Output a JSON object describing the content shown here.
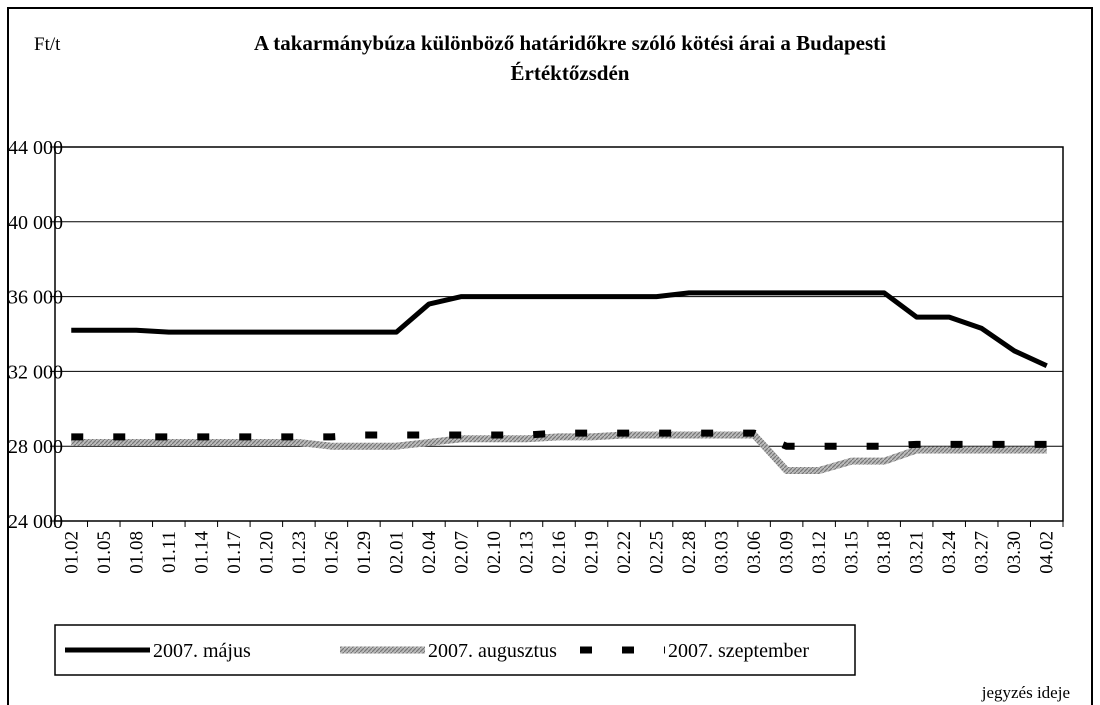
{
  "chart_data": {
    "type": "line",
    "title": [
      "A takarmánybúza különböző határidőkre szóló kötési árai a  Budapesti",
      "Értéktőzsdén"
    ],
    "y_label": "Ft/t",
    "x_label": "jegyzés ideje",
    "categories": [
      "01.02",
      "01.05",
      "01.08",
      "01.11",
      "01.14",
      "01.17",
      "01.20",
      "01.23",
      "01.26",
      "01.29",
      "02.01",
      "02.04",
      "02.07",
      "02.10",
      "02.13",
      "02.16",
      "02.19",
      "02.22",
      "02.25",
      "02.28",
      "03.03",
      "03.06",
      "03.09",
      "03.12",
      "03.15",
      "03.18",
      "03.21",
      "03.24",
      "03.27",
      "03.30",
      "04.02"
    ],
    "series": [
      {
        "name": "2007. május",
        "color": "#000000",
        "style": "solid",
        "values": [
          34200,
          34200,
          34200,
          34100,
          34100,
          34100,
          34100,
          34100,
          34100,
          34100,
          34100,
          35600,
          36000,
          36000,
          36000,
          36000,
          36000,
          36000,
          36000,
          36200,
          36200,
          36200,
          36200,
          36200,
          36200,
          36200,
          34900,
          34900,
          34300,
          33100,
          32300
        ]
      },
      {
        "name": "2007. augusztus",
        "color": "#999999",
        "style": "hatched",
        "values": [
          28200,
          28200,
          28200,
          28200,
          28200,
          28200,
          28200,
          28200,
          28000,
          28000,
          28000,
          28200,
          28400,
          28400,
          28400,
          28500,
          28500,
          28600,
          28600,
          28600,
          28600,
          28600,
          26700,
          26700,
          27200,
          27200,
          27800,
          27800,
          27800,
          27800,
          27800
        ]
      },
      {
        "name": "2007. szeptember",
        "color": "#000000",
        "style": "dashed",
        "values": [
          28500,
          28500,
          28500,
          28500,
          28500,
          28500,
          28500,
          28500,
          28500,
          28600,
          28600,
          28600,
          28600,
          28600,
          28600,
          28700,
          28700,
          28700,
          28700,
          28700,
          28700,
          28700,
          28000,
          28000,
          28000,
          28000,
          28100,
          28100,
          28100,
          28100,
          28100
        ]
      }
    ],
    "ylim": [
      24000,
      44000
    ],
    "yticks": [
      {
        "value": 24000,
        "label": "24 000"
      },
      {
        "value": 28000,
        "label": "28 000"
      },
      {
        "value": 32000,
        "label": "32 000"
      },
      {
        "value": 36000,
        "label": "36 000"
      },
      {
        "value": 40000,
        "label": "40 000"
      },
      {
        "value": 44000,
        "label": "44 000"
      }
    ],
    "grid": true,
    "legend": "bottom"
  }
}
